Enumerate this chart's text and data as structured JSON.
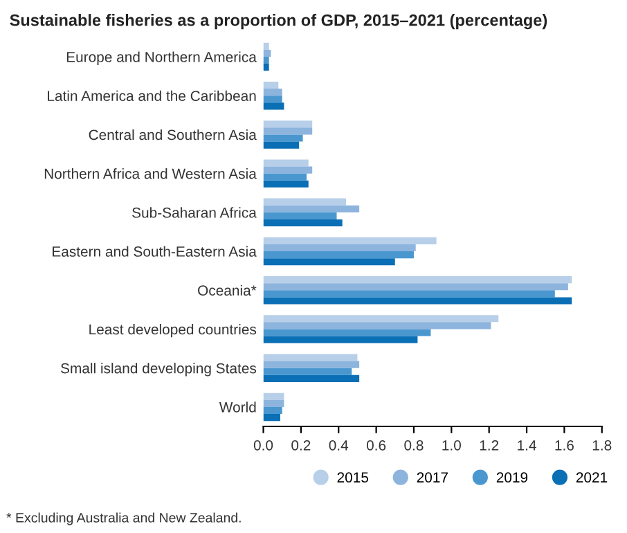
{
  "chart_data": {
    "type": "bar",
    "orientation": "horizontal",
    "title": "Sustainable fisheries as a proportion of GDP, 2015–2021 (percentage)",
    "categories": [
      "Europe and Northern America",
      "Latin America and the Caribbean",
      "Central and Southern Asia",
      "Northern Africa and Western Asia",
      "Sub-Saharan Africa",
      "Eastern and South-Eastern Asia",
      "Oceania*",
      "Least developed countries",
      "Small island developing States",
      "World"
    ],
    "series": [
      {
        "name": "2015",
        "color": "#b7cfe8",
        "values": [
          0.03,
          0.08,
          0.26,
          0.24,
          0.44,
          0.92,
          1.64,
          1.25,
          0.5,
          0.11
        ]
      },
      {
        "name": "2017",
        "color": "#8db4dd",
        "values": [
          0.04,
          0.1,
          0.26,
          0.26,
          0.51,
          0.81,
          1.62,
          1.21,
          0.51,
          0.11
        ]
      },
      {
        "name": "2019",
        "color": "#4a97d0",
        "values": [
          0.03,
          0.1,
          0.21,
          0.23,
          0.39,
          0.8,
          1.55,
          0.89,
          0.47,
          0.1
        ]
      },
      {
        "name": "2021",
        "color": "#0a6fb5",
        "values": [
          0.03,
          0.11,
          0.19,
          0.24,
          0.42,
          0.7,
          1.64,
          0.82,
          0.51,
          0.09
        ]
      }
    ],
    "xlim": [
      0,
      1.8
    ],
    "xticks": [
      {
        "value": 0,
        "label": "0.0"
      },
      {
        "value": 0.2,
        "label": "0.2"
      },
      {
        "value": 0.4,
        "label": "0.4"
      },
      {
        "value": 0.6,
        "label": "0.6"
      },
      {
        "value": 0.8,
        "label": "0.8"
      },
      {
        "value": 1.0,
        "label": "1.0"
      },
      {
        "value": 1.2,
        "label": "1.2"
      },
      {
        "value": 1.4,
        "label": "1.4"
      },
      {
        "value": 1.6,
        "label": "1.6"
      },
      {
        "value": 1.8,
        "label": "1.8"
      }
    ],
    "legend": "bottom right",
    "grid": false,
    "annotations": [
      "* Excluding Australia and New Zealand."
    ]
  }
}
